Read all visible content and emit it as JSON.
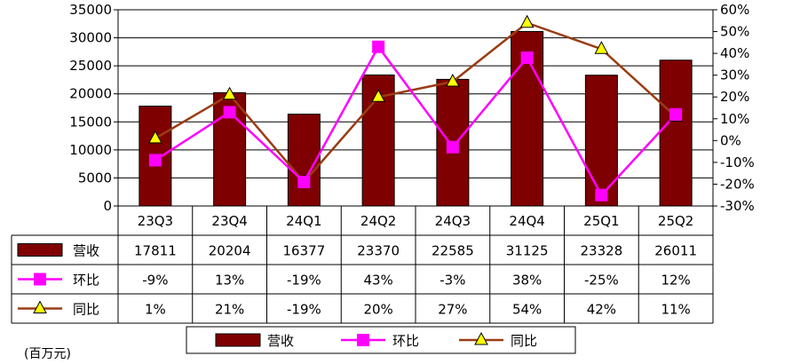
{
  "colors": {
    "bar": "#7f0000",
    "hb_line": "#ff00ff",
    "tb_line": "#9b3c14",
    "tb_marker": "#ffff00",
    "grid": "#000000"
  },
  "unit_note": "(百万元)",
  "chart_data": {
    "type": "bar",
    "categories": [
      "23Q3",
      "23Q4",
      "24Q1",
      "24Q2",
      "24Q3",
      "24Q4",
      "25Q1",
      "25Q2"
    ],
    "series": [
      {
        "name": "营收",
        "kind": "bar",
        "axis": "left",
        "values": [
          17811,
          20204,
          16377,
          23370,
          22585,
          31125,
          23328,
          26011
        ],
        "labels": [
          "17811",
          "20204",
          "16377",
          "23370",
          "22585",
          "31125",
          "23328",
          "26011"
        ]
      },
      {
        "name": "环比",
        "kind": "line",
        "axis": "right",
        "marker": "square",
        "values": [
          -9,
          13,
          -19,
          43,
          -3,
          38,
          -25,
          12
        ],
        "labels": [
          "-9%",
          "13%",
          "-19%",
          "43%",
          "-3%",
          "38%",
          "-25%",
          "12%"
        ]
      },
      {
        "name": "同比",
        "kind": "line",
        "axis": "right",
        "marker": "triangle",
        "values": [
          1,
          21,
          -19,
          20,
          27,
          54,
          42,
          11
        ],
        "labels": [
          "1%",
          "21%",
          "-19%",
          "20%",
          "27%",
          "54%",
          "42%",
          "11%"
        ]
      }
    ],
    "left_axis": {
      "min": 0,
      "max": 35000,
      "ticks": [
        "0",
        "5000",
        "10000",
        "15000",
        "20000",
        "25000",
        "30000",
        "35000"
      ]
    },
    "right_axis": {
      "min": -30,
      "max": 60,
      "ticks": [
        "-30%",
        "-20%",
        "-10%",
        "0%",
        "10%",
        "20%",
        "30%",
        "40%",
        "50%",
        "60%"
      ]
    },
    "grid": true,
    "legend_position": "bottom",
    "data_table": true
  }
}
